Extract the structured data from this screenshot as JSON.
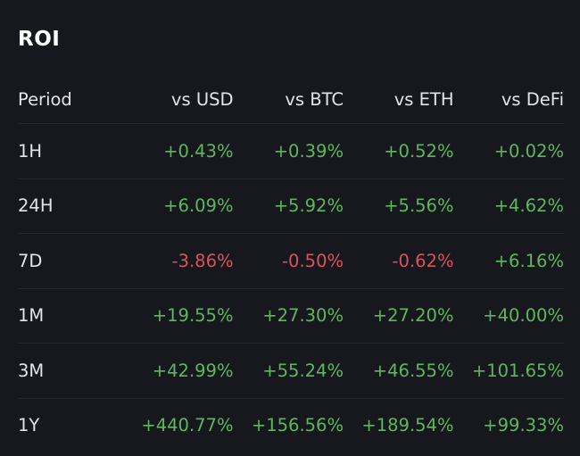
{
  "title": "ROI",
  "columns": [
    "Period",
    "vs USD",
    "vs BTC",
    "vs ETH",
    "vs DeFi"
  ],
  "rows": [
    {
      "period": "1H",
      "values": [
        "+0.43%",
        "+0.39%",
        "+0.52%",
        "+0.02%"
      ],
      "signs": [
        "pos",
        "pos",
        "pos",
        "pos"
      ]
    },
    {
      "period": "24H",
      "values": [
        "+6.09%",
        "+5.92%",
        "+5.56%",
        "+4.62%"
      ],
      "signs": [
        "pos",
        "pos",
        "pos",
        "pos"
      ]
    },
    {
      "period": "7D",
      "values": [
        "-3.86%",
        "-0.50%",
        "-0.62%",
        "+6.16%"
      ],
      "signs": [
        "neg",
        "neg",
        "neg",
        "pos"
      ]
    },
    {
      "period": "1M",
      "values": [
        "+19.55%",
        "+27.30%",
        "+27.20%",
        "+40.00%"
      ],
      "signs": [
        "pos",
        "pos",
        "pos",
        "pos"
      ]
    },
    {
      "period": "3M",
      "values": [
        "+42.99%",
        "+55.24%",
        "+46.55%",
        "+101.65%"
      ],
      "signs": [
        "pos",
        "pos",
        "pos",
        "pos"
      ]
    },
    {
      "period": "1Y",
      "values": [
        "+440.77%",
        "+156.56%",
        "+189.54%",
        "+99.33%"
      ],
      "signs": [
        "pos",
        "pos",
        "pos",
        "pos"
      ]
    }
  ],
  "colors": {
    "positive": "#5cb85c",
    "negative": "#d9525e",
    "background": "#16181d",
    "text": "#e2e4e8"
  }
}
